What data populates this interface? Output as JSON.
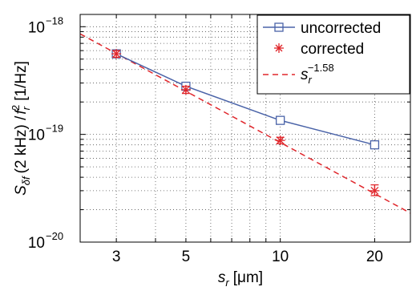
{
  "chart_data": {
    "type": "line",
    "x_scale": "log",
    "y_scale": "log",
    "xlim": [
      2.3,
      26
    ],
    "ylim": [
      1e-20,
      1.3e-18
    ],
    "grid": true,
    "legend_position": "top-right",
    "xlabel": {
      "main": "s",
      "sub": "r",
      "unit": "[μm]"
    },
    "ylabel": {
      "s": "S",
      "s_sub": "δf",
      "mid": "(2 kHz) /",
      "f": "f",
      "f_sub": "r",
      "f_sup": "2",
      "unit": "[1/Hz]"
    },
    "x_ticks": [
      {
        "value": 3,
        "label": "3"
      },
      {
        "value": 5,
        "label": "5"
      },
      {
        "value": 10,
        "label": "10"
      },
      {
        "value": 20,
        "label": "20"
      }
    ],
    "y_ticks": [
      {
        "value": 1e-20,
        "base": "10",
        "exp": "−20"
      },
      {
        "value": 1e-19,
        "base": "10",
        "exp": "−19"
      },
      {
        "value": 1e-18,
        "base": "10",
        "exp": "−18"
      }
    ],
    "series": [
      {
        "name": "uncorrected",
        "color": "#4a63a8",
        "marker": "square",
        "line": "solid",
        "x": [
          3,
          5,
          10,
          20
        ],
        "y": [
          5.6e-19,
          2.8e-19,
          1.35e-19,
          8e-20
        ]
      },
      {
        "name": "corrected",
        "color": "#e0262b",
        "marker": "asterisk",
        "line": "none",
        "x": [
          3,
          5,
          10,
          20
        ],
        "y": [
          5.6e-19,
          2.6e-19,
          8.8e-20,
          3e-20
        ],
        "err_low": [
          5.2e-19,
          2.4e-19,
          8.2e-20,
          2.7e-20
        ],
        "err_high": [
          6e-19,
          2.8e-19,
          9.4e-20,
          3.4e-20
        ]
      },
      {
        "name_main": "s",
        "name_sub": "r",
        "name_exp": "−1.58",
        "color": "#e0262b",
        "marker": "none",
        "line": "dashed",
        "fit": {
          "coefficient": 3.2e-18,
          "exponent": -1.58
        }
      }
    ]
  }
}
